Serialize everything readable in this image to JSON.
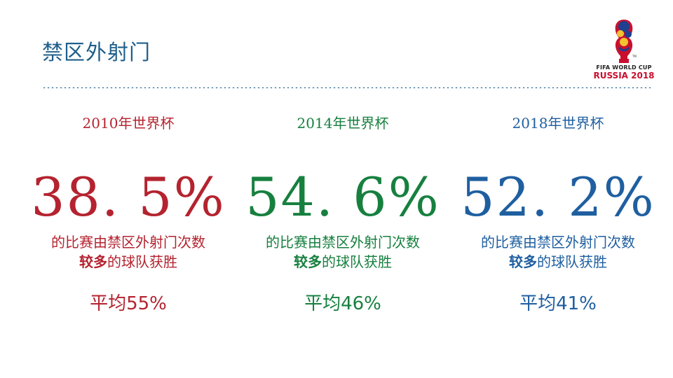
{
  "slide": {
    "title": "禁区外射门"
  },
  "logo": {
    "line1": "FIFA WORLD CUP",
    "line2": "RUSSIA 2018",
    "tm": "TM"
  },
  "columns": [
    {
      "year": "2010年世界杯",
      "percent": "38. 5%",
      "desc_line1": "的比赛由禁区外射门次数",
      "desc_bold": "较多",
      "desc_rest": "的球队获胜",
      "average": "平均55%",
      "color": "#b4232f"
    },
    {
      "year": "2014年世界杯",
      "percent": "54. 6%",
      "desc_line1": "的比赛由禁区外射门次数",
      "desc_bold": "较多",
      "desc_rest": "的球队获胜",
      "average": "平均46%",
      "color": "#17803f"
    },
    {
      "year": "2018年世界杯",
      "percent": "52. 2%",
      "desc_line1": "的比赛由禁区外射门次数",
      "desc_bold": "较多",
      "desc_rest": "的球队获胜",
      "average": "平均41%",
      "color": "#1f5fa0"
    }
  ]
}
